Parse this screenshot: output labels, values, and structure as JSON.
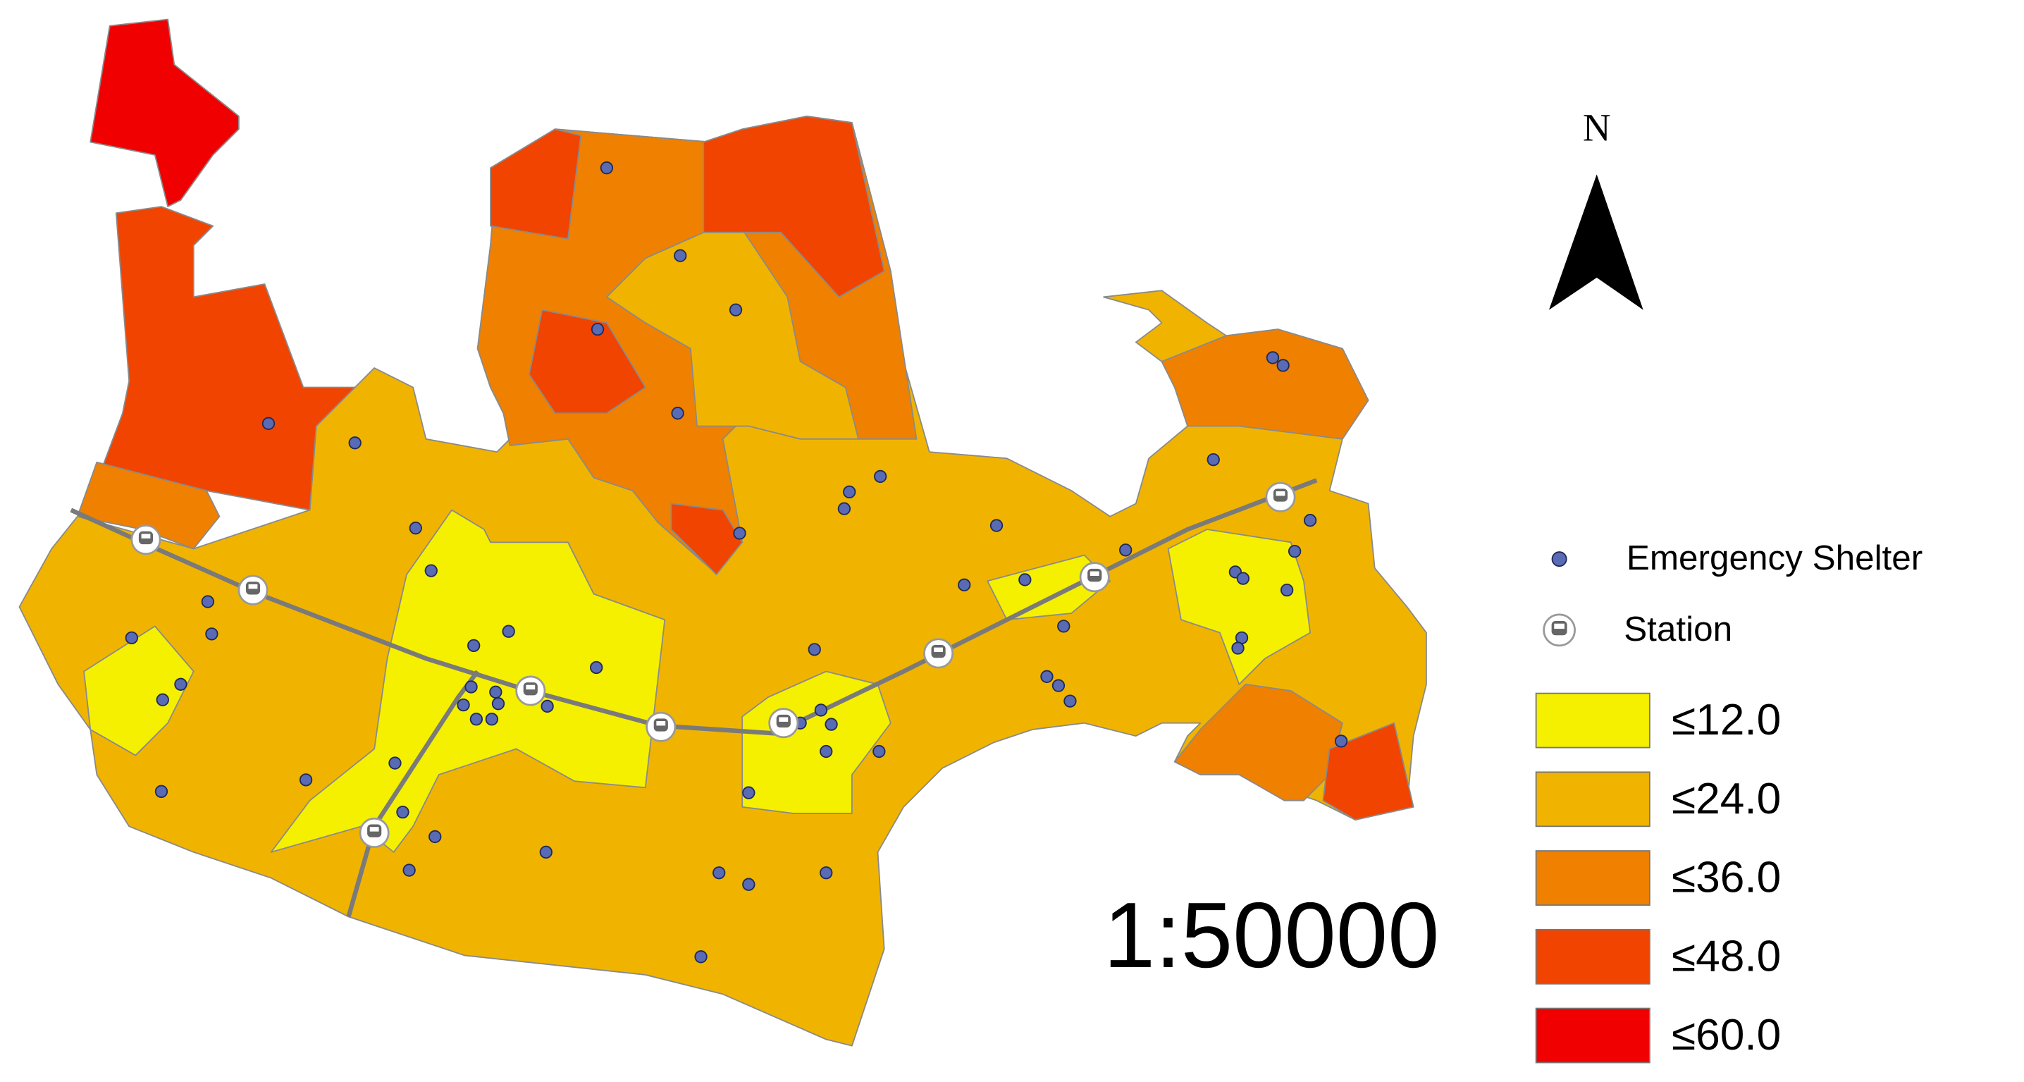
{
  "map": {
    "north_label": "N",
    "point_legend": [
      "Emergency Shelter",
      "Station"
    ],
    "classes": [
      {
        "label": "≤12.0",
        "color": "#f5f000"
      },
      {
        "label": "≤24.0",
        "color": "#f0b400"
      },
      {
        "label": "≤36.0",
        "color": "#f08000"
      },
      {
        "label": "≤48.0",
        "color": "#f04400"
      },
      {
        "label": "≤60.0",
        "color": "#f00000"
      }
    ],
    "scale": "1:50000"
  }
}
